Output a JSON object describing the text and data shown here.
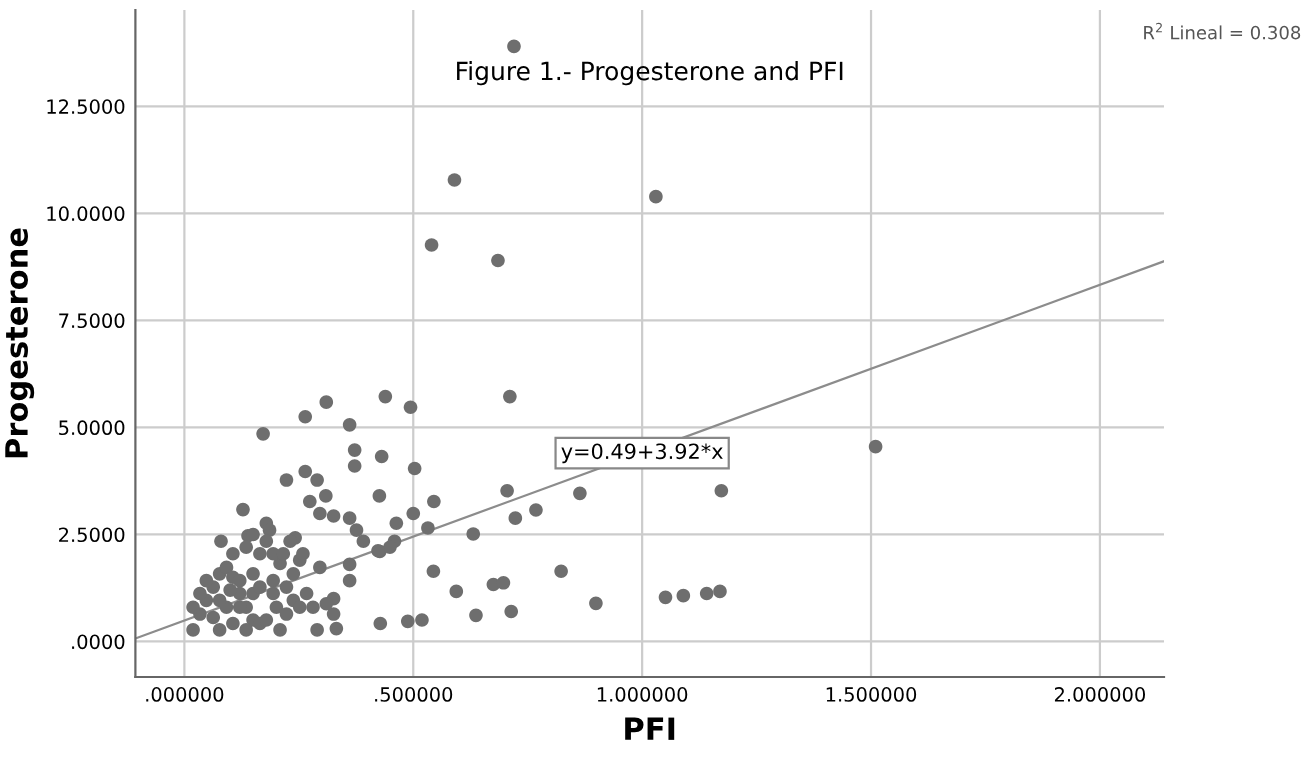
{
  "chart_data": {
    "type": "scatter",
    "title": "Figure 1.- Progesterone and PFI",
    "xlabel": "PFI",
    "ylabel": "Progesterone",
    "annotations": [
      {
        "text": "y=0.49+3.92*x",
        "x": 1.0,
        "y": 4.4
      },
      "R$^{2}$ Lineal = 0.308"
    ],
    "xlim": [
      -0.107,
      2.14
    ],
    "ylim": [
      -0.83,
      14.75
    ],
    "xticks": [
      {
        "value": 0,
        "label": ".000000"
      },
      {
        "value": 0.5,
        "label": ".500000"
      },
      {
        "value": 1,
        "label": "1.000000"
      },
      {
        "value": 1.5,
        "label": "1.500000"
      },
      {
        "value": 2,
        "label": "2.000000"
      }
    ],
    "yticks": [
      {
        "value": 0,
        "label": ".0000"
      },
      {
        "value": 2.5,
        "label": "2.5000"
      },
      {
        "value": 5,
        "label": "5.0000"
      },
      {
        "value": 7.5,
        "label": "7.5000"
      },
      {
        "value": 10,
        "label": "10.0000"
      },
      {
        "value": 12.5,
        "label": "12.5000"
      }
    ],
    "grid": true,
    "marker": "circle",
    "series": [
      {
        "color": "#6e6e6e",
        "x": [
          0.72,
          0.59,
          1.03,
          0.54,
          0.685,
          1.51,
          0.172,
          0.264,
          0.31,
          0.439,
          0.494,
          0.361,
          0.711,
          0.372,
          0.372,
          0.431,
          0.503,
          0.223,
          0.264,
          0.29,
          0.128,
          0.309,
          0.426,
          0.545,
          0.705,
          0.864,
          1.173,
          0.723,
          0.768,
          0.5,
          0.532,
          0.631,
          0.463,
          0.361,
          0.326,
          0.296,
          0.274,
          0.242,
          0.179,
          0.186,
          0.139,
          0.08,
          0.376,
          0.391,
          0.459,
          0.427,
          0.449,
          0.544,
          0.594,
          0.675,
          0.697,
          0.823,
          0.899,
          1.051,
          1.09,
          1.141,
          1.17,
          0.714,
          0.637,
          0.428,
          0.488,
          0.519,
          0.361,
          0.361,
          0.423,
          0.326,
          0.332,
          0.29,
          0.326,
          0.281,
          0.31,
          0.267,
          0.296,
          0.252,
          0.209,
          0.238,
          0.201,
          0.209,
          0.019,
          0.034,
          0.048,
          0.063,
          0.077,
          0.092,
          0.106,
          0.121,
          0.135,
          0.15,
          0.165,
          0.077,
          0.106,
          0.135,
          0.179,
          0.063,
          0.092,
          0.121,
          0.15,
          0.165,
          0.106,
          0.135,
          0.15,
          0.179,
          0.034,
          0.048,
          0.019,
          0.077,
          0.1,
          0.121,
          0.15,
          0.165,
          0.194,
          0.194,
          0.223,
          0.238,
          0.223,
          0.252,
          0.194,
          0.216,
          0.231,
          0.259
        ],
        "values": [
          13.9,
          10.78,
          10.39,
          9.26,
          8.9,
          4.55,
          4.85,
          5.25,
          5.59,
          5.72,
          5.47,
          5.06,
          5.72,
          4.47,
          4.1,
          4.32,
          4.04,
          3.77,
          3.97,
          3.77,
          3.08,
          3.4,
          3.4,
          3.27,
          3.52,
          3.46,
          3.52,
          2.88,
          3.07,
          2.99,
          2.65,
          2.51,
          2.76,
          2.88,
          2.93,
          2.99,
          3.27,
          2.42,
          2.76,
          2.6,
          2.47,
          2.34,
          2.6,
          2.34,
          2.34,
          2.1,
          2.2,
          1.64,
          1.17,
          1.33,
          1.37,
          1.64,
          0.89,
          1.03,
          1.07,
          1.12,
          1.17,
          0.7,
          0.61,
          0.42,
          0.47,
          0.5,
          1.42,
          1.8,
          2.12,
          1.0,
          0.3,
          0.27,
          0.64,
          0.8,
          0.88,
          1.12,
          1.73,
          1.9,
          1.82,
          1.58,
          0.8,
          0.27,
          0.27,
          0.64,
          0.96,
          1.27,
          1.58,
          1.73,
          1.5,
          1.12,
          0.8,
          0.5,
          0.42,
          0.27,
          0.42,
          0.27,
          0.5,
          0.56,
          0.8,
          1.42,
          1.58,
          2.05,
          2.05,
          2.2,
          2.5,
          2.34,
          1.12,
          1.42,
          0.8,
          0.96,
          1.2,
          0.8,
          1.12,
          1.27,
          1.42,
          1.12,
          1.27,
          0.96,
          0.64,
          0.8,
          2.05,
          2.05,
          2.34,
          2.05
        ]
      },
      {
        "type": "line",
        "color": "#8c8c8c",
        "marker": "none",
        "x": [
          -0.107,
          2.14
        ],
        "values": [
          0.07,
          8.88
        ]
      }
    ]
  }
}
